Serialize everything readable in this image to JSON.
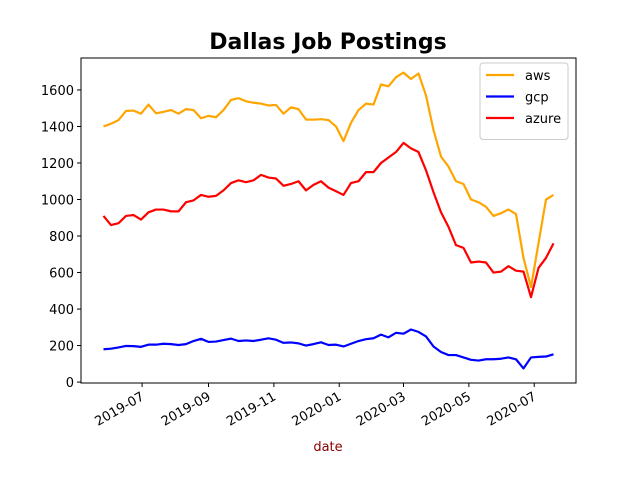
{
  "chart_data": {
    "type": "line",
    "title": "Dallas Job Postings",
    "xlabel": "date",
    "xlabel_color": "#8b0000",
    "x": [
      "2019-05-26",
      "2019-06-02",
      "2019-06-09",
      "2019-06-16",
      "2019-06-23",
      "2019-06-30",
      "2019-07-07",
      "2019-07-14",
      "2019-07-21",
      "2019-07-28",
      "2019-08-04",
      "2019-08-11",
      "2019-08-18",
      "2019-08-25",
      "2019-09-01",
      "2019-09-08",
      "2019-09-15",
      "2019-09-22",
      "2019-09-29",
      "2019-10-06",
      "2019-10-13",
      "2019-10-20",
      "2019-10-27",
      "2019-11-03",
      "2019-11-10",
      "2019-11-17",
      "2019-11-24",
      "2019-12-01",
      "2019-12-08",
      "2019-12-15",
      "2019-12-22",
      "2019-12-29",
      "2020-01-05",
      "2020-01-12",
      "2020-01-19",
      "2020-01-26",
      "2020-02-02",
      "2020-02-09",
      "2020-02-16",
      "2020-02-23",
      "2020-03-01",
      "2020-03-08",
      "2020-03-15",
      "2020-03-22",
      "2020-03-29",
      "2020-04-05",
      "2020-04-12",
      "2020-04-19",
      "2020-04-26",
      "2020-05-03",
      "2020-05-10",
      "2020-05-17",
      "2020-05-24",
      "2020-05-31",
      "2020-06-07",
      "2020-06-14",
      "2020-06-21",
      "2020-06-28",
      "2020-07-05",
      "2020-07-12",
      "2020-07-19"
    ],
    "series": [
      {
        "name": "aws",
        "color": "#ffa500",
        "values": [
          1400,
          1415,
          1435,
          1485,
          1487,
          1470,
          1520,
          1472,
          1480,
          1490,
          1470,
          1495,
          1490,
          1445,
          1458,
          1450,
          1490,
          1545,
          1555,
          1538,
          1530,
          1525,
          1515,
          1518,
          1470,
          1505,
          1495,
          1438,
          1437,
          1440,
          1435,
          1400,
          1320,
          1420,
          1490,
          1525,
          1520,
          1630,
          1620,
          1670,
          1695,
          1660,
          1690,
          1570,
          1380,
          1235,
          1180,
          1100,
          1085,
          1000,
          985,
          960,
          910,
          925,
          945,
          920,
          680,
          520,
          760,
          1000,
          1025
        ]
      },
      {
        "name": "gcp",
        "color": "#0000ff",
        "values": [
          180,
          183,
          190,
          198,
          197,
          193,
          205,
          205,
          210,
          208,
          203,
          208,
          225,
          237,
          220,
          222,
          230,
          238,
          225,
          228,
          225,
          232,
          240,
          232,
          215,
          217,
          212,
          200,
          208,
          218,
          203,
          205,
          195,
          210,
          225,
          235,
          240,
          260,
          245,
          270,
          265,
          288,
          275,
          250,
          195,
          165,
          148,
          148,
          135,
          122,
          118,
          125,
          125,
          128,
          135,
          125,
          75,
          135,
          138,
          140,
          152
        ]
      },
      {
        "name": "azure",
        "color": "#ff0000",
        "values": [
          910,
          860,
          870,
          910,
          915,
          890,
          930,
          945,
          945,
          935,
          935,
          985,
          995,
          1025,
          1015,
          1020,
          1050,
          1090,
          1105,
          1095,
          1105,
          1135,
          1120,
          1115,
          1075,
          1085,
          1100,
          1050,
          1080,
          1100,
          1065,
          1045,
          1025,
          1090,
          1100,
          1150,
          1150,
          1200,
          1230,
          1260,
          1310,
          1280,
          1260,
          1160,
          1040,
          930,
          850,
          750,
          735,
          655,
          660,
          655,
          600,
          605,
          635,
          610,
          605,
          465,
          625,
          680,
          760
        ]
      }
    ],
    "xlim": [
      "2019-05-05",
      "2020-08-09"
    ],
    "xticks": [
      {
        "value": "2019-07-01",
        "label": "2019-07"
      },
      {
        "value": "2019-09-01",
        "label": "2019-09"
      },
      {
        "value": "2019-11-01",
        "label": "2019-11"
      },
      {
        "value": "2020-01-01",
        "label": "2020-01"
      },
      {
        "value": "2020-03-01",
        "label": "2020-03"
      },
      {
        "value": "2020-05-01",
        "label": "2020-05"
      },
      {
        "value": "2020-07-01",
        "label": "2020-07"
      }
    ],
    "ylim": [
      -5,
      1775
    ],
    "yticks": [
      0,
      200,
      400,
      600,
      800,
      1000,
      1200,
      1400,
      1600
    ],
    "legend": "upper right",
    "grid": false
  }
}
